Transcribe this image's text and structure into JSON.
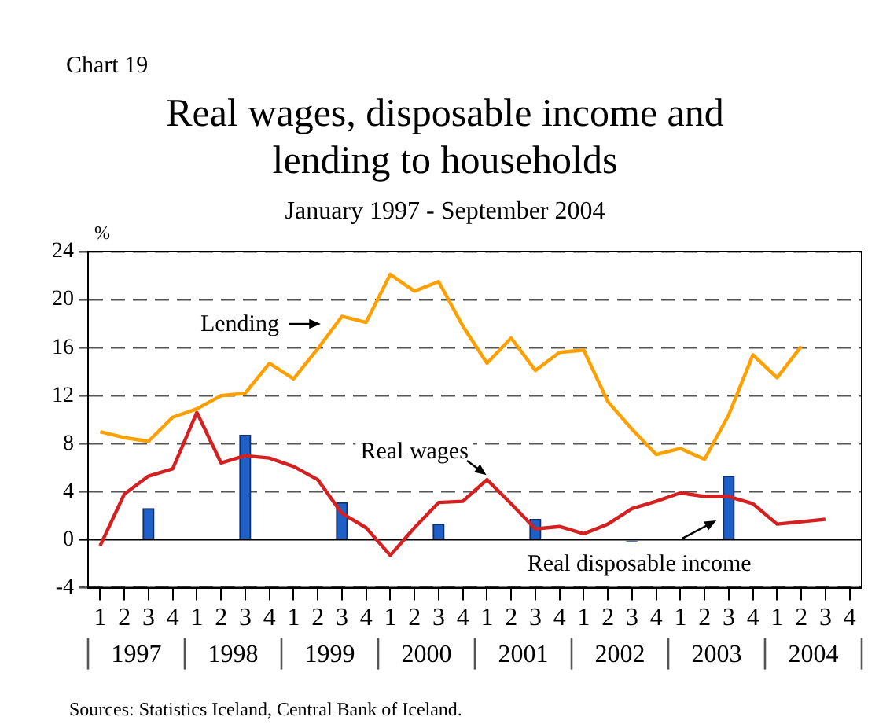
{
  "chart_data": {
    "type": "line",
    "title": "Real wages, disposable income and lending to households",
    "subtitle": "January 1997 - September 2004",
    "ylabel": "%",
    "categories": [
      "1",
      "2",
      "3",
      "4",
      "1",
      "2",
      "3",
      "4",
      "1",
      "2",
      "3",
      "4",
      "1",
      "2",
      "3",
      "4",
      "1",
      "2",
      "3",
      "4",
      "1",
      "2",
      "3",
      "4",
      "1",
      "2",
      "3",
      "4",
      "1",
      "2",
      "3",
      "4"
    ],
    "series": [
      {
        "name": "Real disposable income",
        "type": "bar",
        "color": "#1f5fc8",
        "values": [
          null,
          null,
          2.6,
          null,
          null,
          null,
          8.7,
          null,
          null,
          null,
          3.1,
          null,
          null,
          null,
          1.3,
          null,
          null,
          null,
          1.7,
          null,
          null,
          null,
          -0.1,
          null,
          null,
          null,
          5.3,
          null,
          null,
          null,
          null,
          null
        ]
      },
      {
        "name": "Lending",
        "color": "#ffa000",
        "values": [
          9.0,
          8.5,
          8.2,
          10.2,
          10.9,
          12.0,
          12.2,
          14.7,
          13.4,
          15.9,
          18.6,
          18.1,
          22.1,
          20.7,
          21.5,
          17.8,
          14.7,
          16.8,
          14.1,
          15.6,
          15.8,
          11.5,
          9.2,
          7.1,
          7.6,
          6.7,
          10.4,
          15.4,
          13.5,
          16.1,
          null,
          null
        ]
      },
      {
        "name": "Real wages",
        "color": "#d42020",
        "values": [
          -0.5,
          3.8,
          5.3,
          5.9,
          10.6,
          6.4,
          7.0,
          6.8,
          6.1,
          5.0,
          2.2,
          1.0,
          -1.3,
          1.0,
          3.1,
          3.2,
          5.0,
          3.0,
          0.9,
          1.1,
          0.5,
          1.3,
          2.6,
          3.2,
          3.9,
          3.6,
          3.6,
          3.0,
          1.3,
          1.5,
          1.7,
          null
        ]
      }
    ],
    "ylim": [
      -4,
      24
    ],
    "yticks": [
      -4,
      0,
      4,
      8,
      12,
      16,
      20,
      24
    ],
    "grid": "y",
    "legend": false,
    "marker": "none",
    "line_style": "solid",
    "annotations": [
      "Chart 19",
      "Sources: Statistics Iceland, Central Bank of Iceland.",
      "1997",
      "1998",
      "1999",
      "2000",
      "2001",
      "2002",
      "2003",
      "2004"
    ]
  }
}
